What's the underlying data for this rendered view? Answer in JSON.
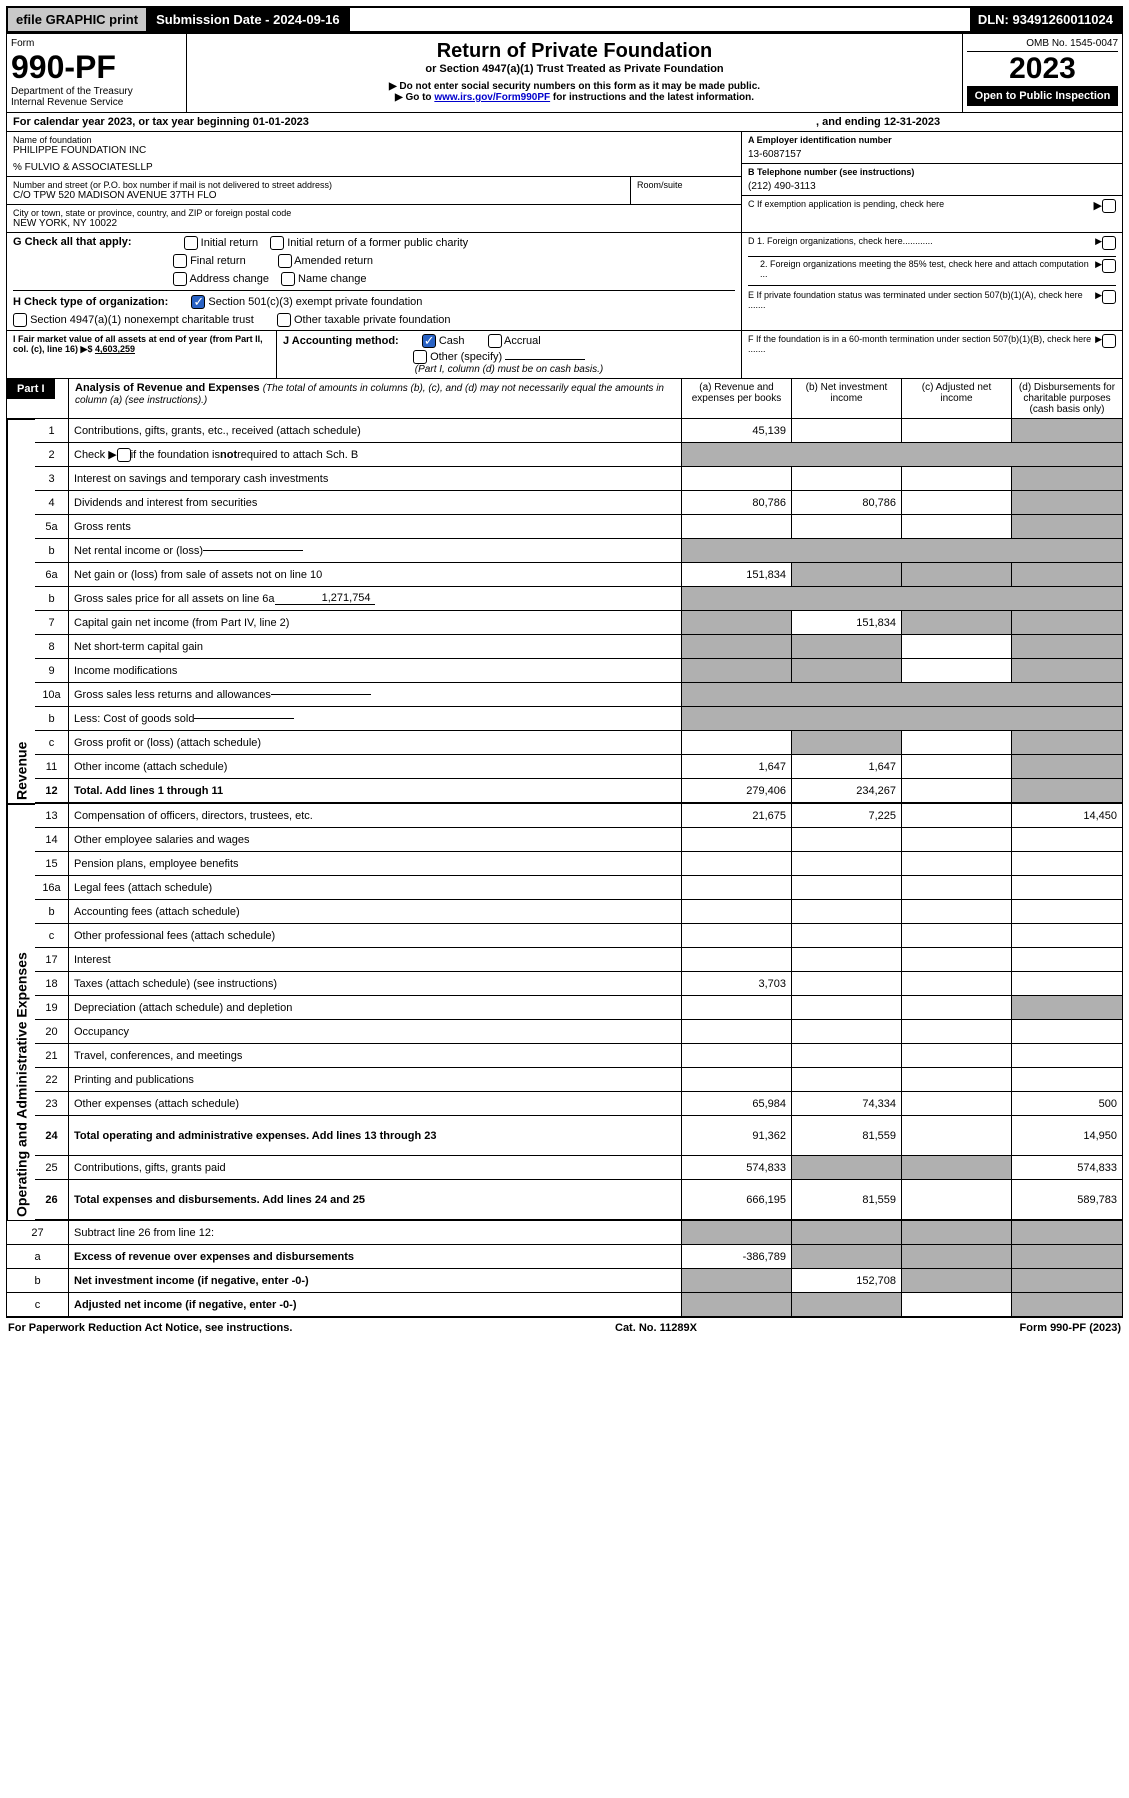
{
  "toolbar": {
    "efile": "efile GRAPHIC print",
    "submission": "Submission Date - 2024-09-16",
    "dln": "DLN: 93491260011024"
  },
  "header": {
    "form_label": "Form",
    "form_num": "990-PF",
    "dept": "Department of the Treasury",
    "irs": "Internal Revenue Service",
    "title": "Return of Private Foundation",
    "subtitle": "or Section 4947(a)(1) Trust Treated as Private Foundation",
    "note1": "▶ Do not enter social security numbers on this form as it may be made public.",
    "note2_pre": "▶ Go to ",
    "note2_link": "www.irs.gov/Form990PF",
    "note2_post": " for instructions and the latest information.",
    "omb": "OMB No. 1545-0047",
    "year": "2023",
    "open": "Open to Public Inspection"
  },
  "calyr": {
    "text": "For calendar year 2023, or tax year beginning 01-01-2023",
    "end": ", and ending 12-31-2023"
  },
  "name_block": {
    "label": "Name of foundation",
    "name": "PHILIPPE FOUNDATION INC",
    "care": "% FULVIO & ASSOCIATESLLP",
    "addr_label": "Number and street (or P.O. box number if mail is not delivered to street address)",
    "addr": "C/O TPW 520 MADISON AVENUE 37TH FLO",
    "room_label": "Room/suite",
    "city_label": "City or town, state or province, country, and ZIP or foreign postal code",
    "city": "NEW YORK, NY  10022"
  },
  "right_block": {
    "ein_label": "A Employer identification number",
    "ein": "13-6087157",
    "tel_label": "B Telephone number (see instructions)",
    "tel": "(212) 490-3113",
    "c": "C If exemption application is pending, check here",
    "d1": "D 1. Foreign organizations, check here............",
    "d2": "2. Foreign organizations meeting the 85% test, check here and attach computation ...",
    "e": "E  If private foundation status was terminated under section 507(b)(1)(A), check here .......",
    "f": "F  If the foundation is in a 60-month termination under section 507(b)(1)(B), check here .......",
    "arrow": "▶"
  },
  "g": {
    "label": "G Check all that apply:",
    "opts": [
      "Initial return",
      "Final return",
      "Address change",
      "Initial return of a former public charity",
      "Amended return",
      "Name change"
    ]
  },
  "h": {
    "label": "H Check type of organization:",
    "o1": "Section 501(c)(3) exempt private foundation",
    "o2": "Section 4947(a)(1) nonexempt charitable trust",
    "o3": "Other taxable private foundation"
  },
  "i": {
    "label": "I Fair market value of all assets at end of year (from Part II, col. (c), line 16) ▶$",
    "val": "4,603,259"
  },
  "j": {
    "label": "J Accounting method:",
    "cash": "Cash",
    "accrual": "Accrual",
    "other": "Other (specify)",
    "note": "(Part I, column (d) must be on cash basis.)"
  },
  "part1": {
    "hdr": "Part I",
    "title": "Analysis of Revenue and Expenses",
    "title_note": "(The total of amounts in columns (b), (c), and (d) may not necessarily equal the amounts in column (a) (see instructions).)",
    "cols": {
      "a": "(a)   Revenue and expenses per books",
      "b": "(b)   Net investment income",
      "c": "(c)   Adjusted net income",
      "d": "(d)   Disbursements for charitable purposes (cash basis only)"
    }
  },
  "sections": {
    "revenue": "Revenue",
    "expenses": "Operating and Administrative Expenses"
  },
  "rows": [
    {
      "n": "1",
      "txt": "Contributions, gifts, grants, etc., received (attach schedule)",
      "a": "45,139",
      "d_gray": true
    },
    {
      "n": "2",
      "txt": "Check ▶ ☐ if the foundation is not required to attach Sch. B",
      "span": true
    },
    {
      "n": "3",
      "txt": "Interest on savings and temporary cash investments",
      "a": "",
      "b": "",
      "c": "",
      "d_gray": true
    },
    {
      "n": "4",
      "txt": "Dividends and interest from securities",
      "a": "80,786",
      "b": "80,786",
      "d_gray": true
    },
    {
      "n": "5a",
      "txt": "Gross rents",
      "a": "",
      "b": "",
      "c": "",
      "d_gray": true
    },
    {
      "n": "b",
      "txt": "Net rental income or (loss)",
      "inline": true
    },
    {
      "n": "6a",
      "txt": "Net gain or (loss) from sale of assets not on line 10",
      "a": "151,834",
      "b_gray": true,
      "c_gray": true,
      "d_gray": true
    },
    {
      "n": "b",
      "txt": "Gross sales price for all assets on line 6a",
      "inline_val": "1,271,754"
    },
    {
      "n": "7",
      "txt": "Capital gain net income (from Part IV, line 2)",
      "a_gray": true,
      "b": "151,834",
      "c_gray": true,
      "d_gray": true
    },
    {
      "n": "8",
      "txt": "Net short-term capital gain",
      "a_gray": true,
      "b_gray": true,
      "d_gray": true
    },
    {
      "n": "9",
      "txt": "Income modifications",
      "a_gray": true,
      "b_gray": true,
      "d_gray": true
    },
    {
      "n": "10a",
      "txt": "Gross sales less returns and allowances",
      "inline": true
    },
    {
      "n": "b",
      "txt": "Less: Cost of goods sold",
      "inline": true
    },
    {
      "n": "c",
      "txt": "Gross profit or (loss) (attach schedule)",
      "a": "",
      "b_gray": true,
      "d_gray": true
    },
    {
      "n": "11",
      "txt": "Other income (attach schedule)",
      "a": "1,647",
      "b": "1,647",
      "d_gray": true
    },
    {
      "n": "12",
      "txt": "Total. Add lines 1 through 11",
      "bold": true,
      "a": "279,406",
      "b": "234,267",
      "d_gray": true
    }
  ],
  "exprows": [
    {
      "n": "13",
      "txt": "Compensation of officers, directors, trustees, etc.",
      "a": "21,675",
      "b": "7,225",
      "d": "14,450"
    },
    {
      "n": "14",
      "txt": "Other employee salaries and wages"
    },
    {
      "n": "15",
      "txt": "Pension plans, employee benefits"
    },
    {
      "n": "16a",
      "txt": "Legal fees (attach schedule)"
    },
    {
      "n": "b",
      "txt": "Accounting fees (attach schedule)"
    },
    {
      "n": "c",
      "txt": "Other professional fees (attach schedule)"
    },
    {
      "n": "17",
      "txt": "Interest"
    },
    {
      "n": "18",
      "txt": "Taxes (attach schedule) (see instructions)",
      "a": "3,703"
    },
    {
      "n": "19",
      "txt": "Depreciation (attach schedule) and depletion",
      "d_gray": true
    },
    {
      "n": "20",
      "txt": "Occupancy"
    },
    {
      "n": "21",
      "txt": "Travel, conferences, and meetings"
    },
    {
      "n": "22",
      "txt": "Printing and publications"
    },
    {
      "n": "23",
      "txt": "Other expenses (attach schedule)",
      "a": "65,984",
      "b": "74,334",
      "d": "500"
    },
    {
      "n": "24",
      "txt": "Total operating and administrative expenses. Add lines 13 through 23",
      "bold": true,
      "a": "91,362",
      "b": "81,559",
      "d": "14,950",
      "tall": true
    },
    {
      "n": "25",
      "txt": "Contributions, gifts, grants paid",
      "a": "574,833",
      "b_gray": true,
      "c_gray": true,
      "d": "574,833"
    },
    {
      "n": "26",
      "txt": "Total expenses and disbursements. Add lines 24 and 25",
      "bold": true,
      "a": "666,195",
      "b": "81,559",
      "d": "589,783",
      "tall": true
    }
  ],
  "bottomrows": [
    {
      "n": "27",
      "txt": "Subtract line 26 from line 12:",
      "a_gray": true,
      "b_gray": true,
      "c_gray": true,
      "d_gray": true
    },
    {
      "n": "a",
      "txt": "Excess of revenue over expenses and disbursements",
      "bold": true,
      "a": "-386,789",
      "b_gray": true,
      "c_gray": true,
      "d_gray": true
    },
    {
      "n": "b",
      "txt": "Net investment income (if negative, enter -0-)",
      "bold": true,
      "a_gray": true,
      "b": "152,708",
      "c_gray": true,
      "d_gray": true
    },
    {
      "n": "c",
      "txt": "Adjusted net income (if negative, enter -0-)",
      "bold": true,
      "a_gray": true,
      "b_gray": true,
      "d_gray": true
    }
  ],
  "footer": {
    "left": "For Paperwork Reduction Act Notice, see instructions.",
    "mid": "Cat. No. 11289X",
    "right": "Form 990-PF (2023)"
  }
}
